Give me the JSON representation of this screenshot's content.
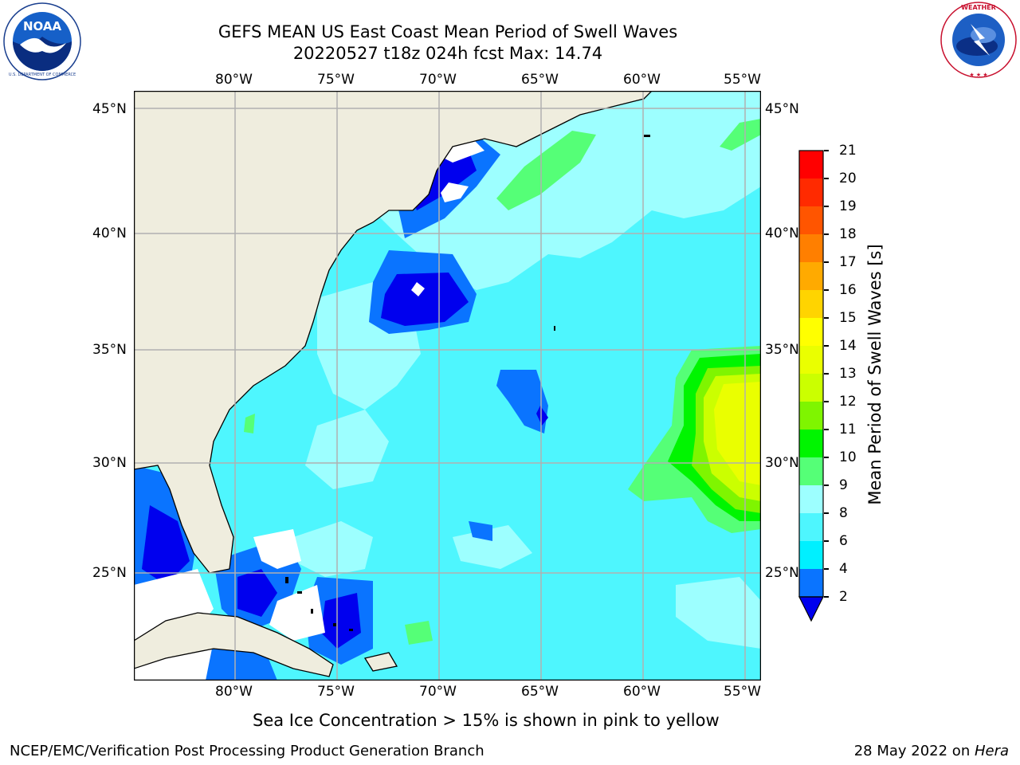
{
  "header": {
    "title_line1": "GEFS MEAN US East Coast Mean Period of Swell Waves",
    "title_line2": "20220527 t18z 024h fcst   Max: 14.74"
  },
  "logos": {
    "left": {
      "name": "NOAA",
      "ring_text": "NATIONAL OCEANIC AND ATMOSPHERIC ADMINISTRATION · U.S. DEPARTMENT OF COMMERCE"
    },
    "right": {
      "name": "NATIONAL WEATHER SERVICE"
    }
  },
  "map": {
    "lon_labels": [
      "80°W",
      "75°W",
      "70°W",
      "65°W",
      "60°W",
      "55°W"
    ],
    "lat_labels": [
      "45°N",
      "40°N",
      "35°N",
      "30°N",
      "25°N"
    ],
    "colors": {
      "land": "#efedde",
      "ocean": "#4ef6fe",
      "grid": "#b0b0b0"
    }
  },
  "colorbar": {
    "label": "Mean Period of Swell Waves [s]",
    "ticks": [
      "21",
      "20",
      "19",
      "18",
      "17",
      "16",
      "15",
      "14",
      "13",
      "12",
      "11",
      "10",
      "9",
      "8",
      "6",
      "4",
      "2"
    ],
    "colors": [
      "#ff0000",
      "#ff2a00",
      "#ff5500",
      "#ff7f00",
      "#ffaa00",
      "#ffd400",
      "#ffff00",
      "#eaff00",
      "#cbff00",
      "#7ff500",
      "#00f500",
      "#55ff77",
      "#9dffff",
      "#4ef6fe",
      "#00f0ff",
      "#0a74ff"
    ],
    "extend_color": "#0000ee"
  },
  "footer": {
    "note": "Sea Ice Concentration > 15% is shown in pink to yellow",
    "credit": "NCEP/EMC/Verification Post Processing Product Generation Branch",
    "date": "28 May 2022 on ",
    "host": "Hera"
  }
}
